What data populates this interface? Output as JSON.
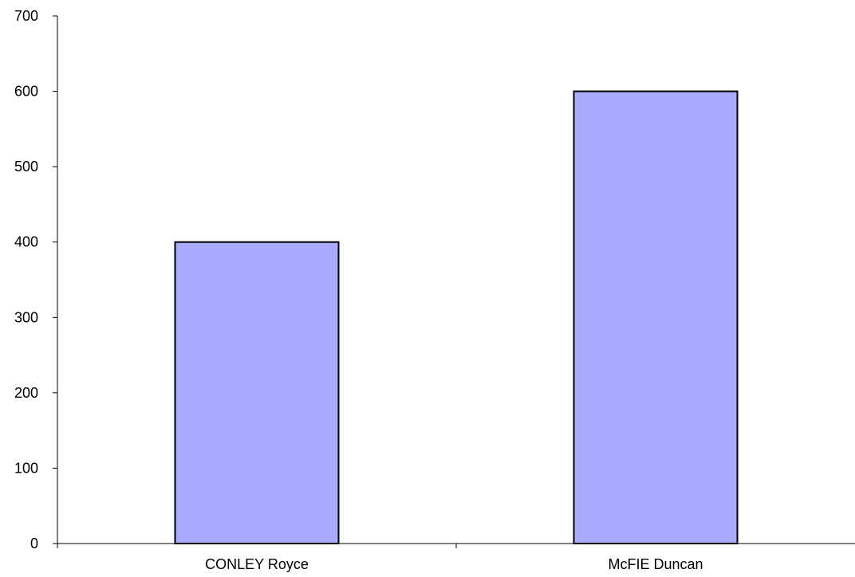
{
  "chart_data": {
    "type": "bar",
    "title": "",
    "xlabel": "",
    "ylabel": "",
    "categories": [
      "CONLEY Royce",
      "McFIE Duncan"
    ],
    "values": [
      400,
      600
    ],
    "ylim": [
      0,
      700
    ],
    "yticks": [
      0,
      100,
      200,
      300,
      400,
      500,
      600,
      700
    ],
    "ytick_labels": [
      "0",
      "100",
      "200",
      "300",
      "400",
      "500",
      "600",
      "700"
    ],
    "grid": false,
    "legend": "none",
    "colors": {
      "bar_fill": "#aaaaff",
      "bar_stroke": "#000000",
      "axis": "#000000"
    }
  }
}
